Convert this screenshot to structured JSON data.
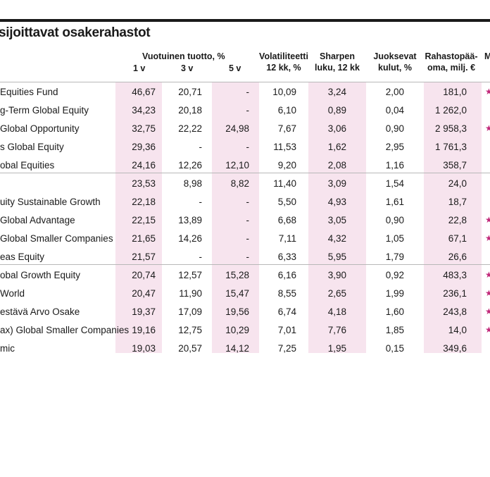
{
  "title": "sijoittavat osakerahastot",
  "headers": {
    "return_group": "Vuotuinen tuotto, %",
    "y1": "1 v",
    "y3": "3 v",
    "y5": "5 v",
    "volatility": [
      "Volatiliteetti",
      "12 kk, %"
    ],
    "sharpe": [
      "Sharpen",
      "luku, 12 kk"
    ],
    "fees": [
      "Juoksevat",
      "kulut, %"
    ],
    "assets": [
      "Rahastopää-",
      "oma, milj. €"
    ],
    "extra": "M"
  },
  "rows": [
    {
      "name": "Equities Fund",
      "y1": "46,67",
      "y3": "20,71",
      "y5": "-",
      "vol": "10,09",
      "sharpe": "3,24",
      "fees": "2,00",
      "assets": "181,0",
      "star": "★"
    },
    {
      "name": "g-Term Global Equity",
      "y1": "34,23",
      "y3": "20,18",
      "y5": "-",
      "vol": "6,10",
      "sharpe": "0,89",
      "fees": "0,04",
      "assets": "1 262,0",
      "star": ""
    },
    {
      "name": "Global Opportunity",
      "y1": "32,75",
      "y3": "22,22",
      "y5": "24,98",
      "vol": "7,67",
      "sharpe": "3,06",
      "fees": "0,90",
      "assets": "2 958,3",
      "star": "★"
    },
    {
      "name": "s Global Equity",
      "y1": "29,36",
      "y3": "-",
      "y5": "-",
      "vol": "11,53",
      "sharpe": "1,62",
      "fees": "2,95",
      "assets": "1 761,3",
      "star": ""
    },
    {
      "name": "obal Equities",
      "y1": "24,16",
      "y3": "12,26",
      "y5": "12,10",
      "vol": "9,20",
      "sharpe": "2,08",
      "fees": "1,16",
      "assets": "358,7",
      "star": ""
    },
    {
      "name": "",
      "y1": "23,53",
      "y3": "8,98",
      "y5": "8,82",
      "vol": "11,40",
      "sharpe": "3,09",
      "fees": "1,54",
      "assets": "24,0",
      "star": ""
    },
    {
      "name": "uity Sustainable Growth",
      "y1": "22,18",
      "y3": "-",
      "y5": "-",
      "vol": "5,50",
      "sharpe": "4,93",
      "fees": "1,61",
      "assets": "18,7",
      "star": ""
    },
    {
      "name": "Global Advantage",
      "y1": "22,15",
      "y3": "13,89",
      "y5": "-",
      "vol": "6,68",
      "sharpe": "3,05",
      "fees": "0,90",
      "assets": "22,8",
      "star": "★"
    },
    {
      "name": "Global Smaller Companies",
      "y1": "21,65",
      "y3": "14,26",
      "y5": "-",
      "vol": "7,11",
      "sharpe": "4,32",
      "fees": "1,05",
      "assets": "67,1",
      "star": "★"
    },
    {
      "name": "eas Equity",
      "y1": "21,57",
      "y3": "-",
      "y5": "-",
      "vol": "6,33",
      "sharpe": "5,95",
      "fees": "1,79",
      "assets": "26,6",
      "star": ""
    },
    {
      "name": "obal Growth Equity",
      "y1": "20,74",
      "y3": "12,57",
      "y5": "15,28",
      "vol": "6,16",
      "sharpe": "3,90",
      "fees": "0,92",
      "assets": "483,3",
      "star": "★"
    },
    {
      "name": "World",
      "y1": "20,47",
      "y3": "11,90",
      "y5": "15,47",
      "vol": "8,55",
      "sharpe": "2,65",
      "fees": "1,99",
      "assets": "236,1",
      "star": "★"
    },
    {
      "name": "estävä Arvo Osake",
      "y1": "19,37",
      "y3": "17,09",
      "y5": "19,56",
      "vol": "6,74",
      "sharpe": "4,18",
      "fees": "1,60",
      "assets": "243,8",
      "star": "★"
    },
    {
      "name": "ax) Global Smaller Companies",
      "y1": "19,16",
      "y3": "12,75",
      "y5": "10,29",
      "vol": "7,01",
      "sharpe": "7,76",
      "fees": "1,85",
      "assets": "14,0",
      "star": "★"
    },
    {
      "name": "mic",
      "y1": "19,03",
      "y3": "20,57",
      "y5": "14,12",
      "vol": "7,25",
      "sharpe": "1,95",
      "fees": "0,15",
      "assets": "349,6",
      "star": ""
    }
  ]
}
